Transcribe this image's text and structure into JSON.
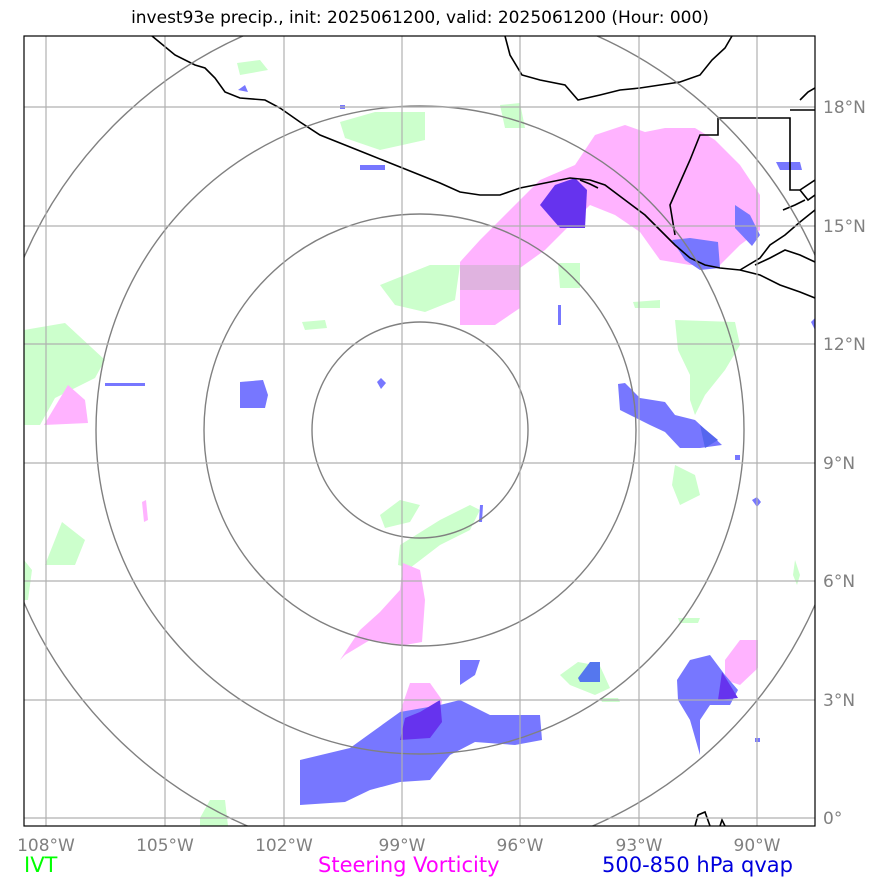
{
  "title": "invest93e precip., init: 2025061200, valid: 2025061200 (Hour: 000)",
  "x_ticks": [
    "108°W",
    "105°W",
    "102°W",
    "99°W",
    "96°W",
    "93°W",
    "90°W"
  ],
  "y_ticks": [
    "18°N",
    "15°N",
    "12°N",
    "9°N",
    "6°N",
    "3°N",
    "0°"
  ],
  "legend": [
    {
      "label": "IVT",
      "color": "#00ff00"
    },
    {
      "label": "Steering Vorticity",
      "color": "#ff00ff"
    },
    {
      "label": "500-850 hPa qvap",
      "color": "#0000dd"
    }
  ],
  "colors": {
    "ivt_fill": "#ccffcc",
    "vorticity_fill": "#ffb3ff",
    "qvap_fill": "#7777ff",
    "qvap_dark": "#6633ee",
    "range_rings": "#808080",
    "grid": "#b0b0b0",
    "coastline": "#000000"
  }
}
